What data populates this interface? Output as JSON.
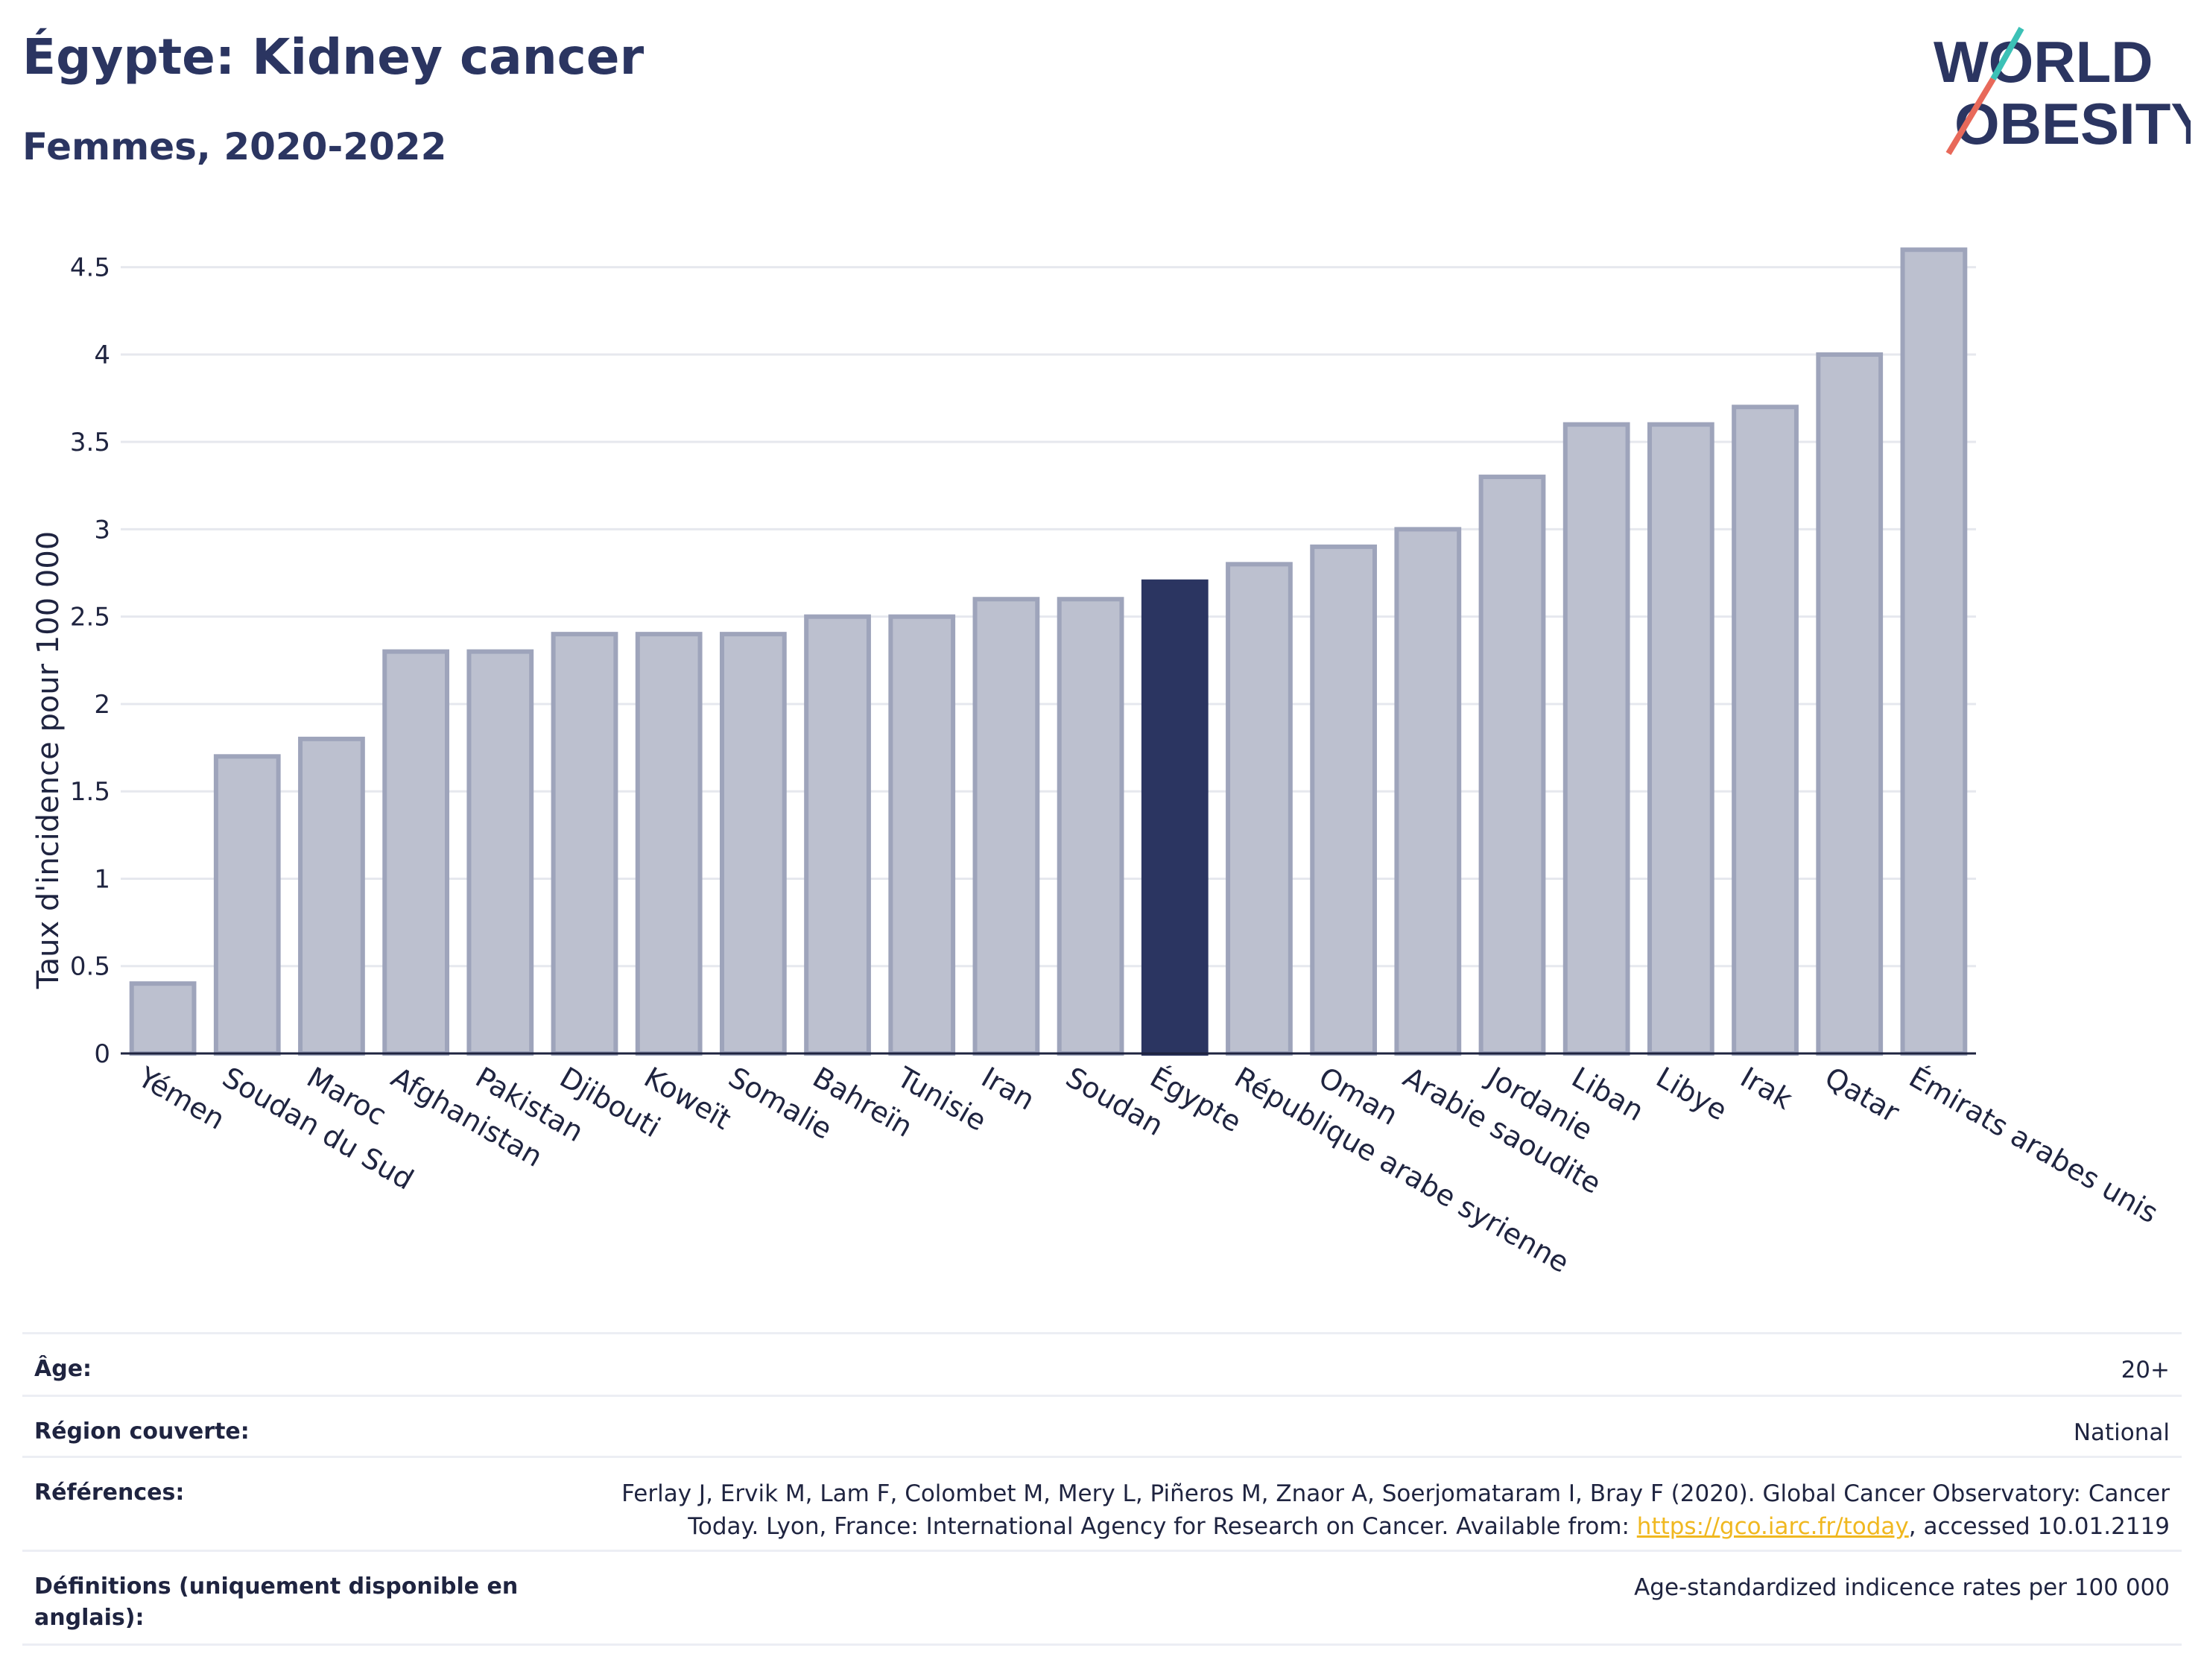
{
  "header": {
    "title": "Égypte: Kidney cancer",
    "subtitle": "Femmes, 2020-2022"
  },
  "logo": {
    "line1": "WORLD",
    "line2": "OBESITY"
  },
  "colors": {
    "bar": "#bcc0cf",
    "bar_border": "#9ea4bb",
    "highlight": "#2b3561",
    "grid": "#e6e8ee",
    "axis": "#1f2440"
  },
  "chart_data": {
    "type": "bar",
    "title": "",
    "xlabel": "",
    "ylabel": "Taux d'incidence pour 100 000",
    "ylim": [
      0,
      4.75
    ],
    "yticks": [
      0,
      0.5,
      1,
      1.5,
      2,
      2.5,
      3,
      3.5,
      4,
      4.5
    ],
    "ytick_labels": [
      "0",
      "0.5",
      "1",
      "1.5",
      "2",
      "2.5",
      "3",
      "3.5",
      "4",
      "4.5"
    ],
    "grid": true,
    "highlight": "Égypte",
    "categories": [
      "Yémen",
      "Soudan du Sud",
      "Maroc",
      "Afghanistan",
      "Pakistan",
      "Djibouti",
      "Koweït",
      "Somalie",
      "Bahreïn",
      "Tunisie",
      "Iran",
      "Soudan",
      "Égypte",
      "République arabe syrienne",
      "Oman",
      "Arabie saoudite",
      "Jordanie",
      "Liban",
      "Libye",
      "Irak",
      "Qatar",
      "Émirats arabes unis"
    ],
    "values": [
      0.4,
      1.7,
      1.8,
      2.3,
      2.3,
      2.4,
      2.4,
      2.4,
      2.5,
      2.5,
      2.6,
      2.6,
      2.7,
      2.8,
      2.9,
      3.0,
      3.3,
      3.6,
      3.6,
      3.7,
      4.0,
      4.6
    ]
  },
  "meta": {
    "age_label": "Âge:",
    "age_value": "20+",
    "region_label": "Région couverte:",
    "region_value": "National",
    "ref_label": "Références:",
    "ref_line1": "Ferlay J, Ervik M, Lam F, Colombet M, Mery L, Piñeros M, Znaor A, Soerjomataram I, Bray F (2020). Global Cancer Observatory: Cancer",
    "ref_line2_pre": "Today. Lyon, France: International Agency for Research on Cancer. Available from: ",
    "ref_link": "https://gco.iarc.fr/today",
    "ref_line2_post": ", accessed 10.01.2119",
    "def_label": "Définitions (uniquement disponible en anglais):",
    "def_value": "Age-standardized indicence rates per 100 000"
  }
}
